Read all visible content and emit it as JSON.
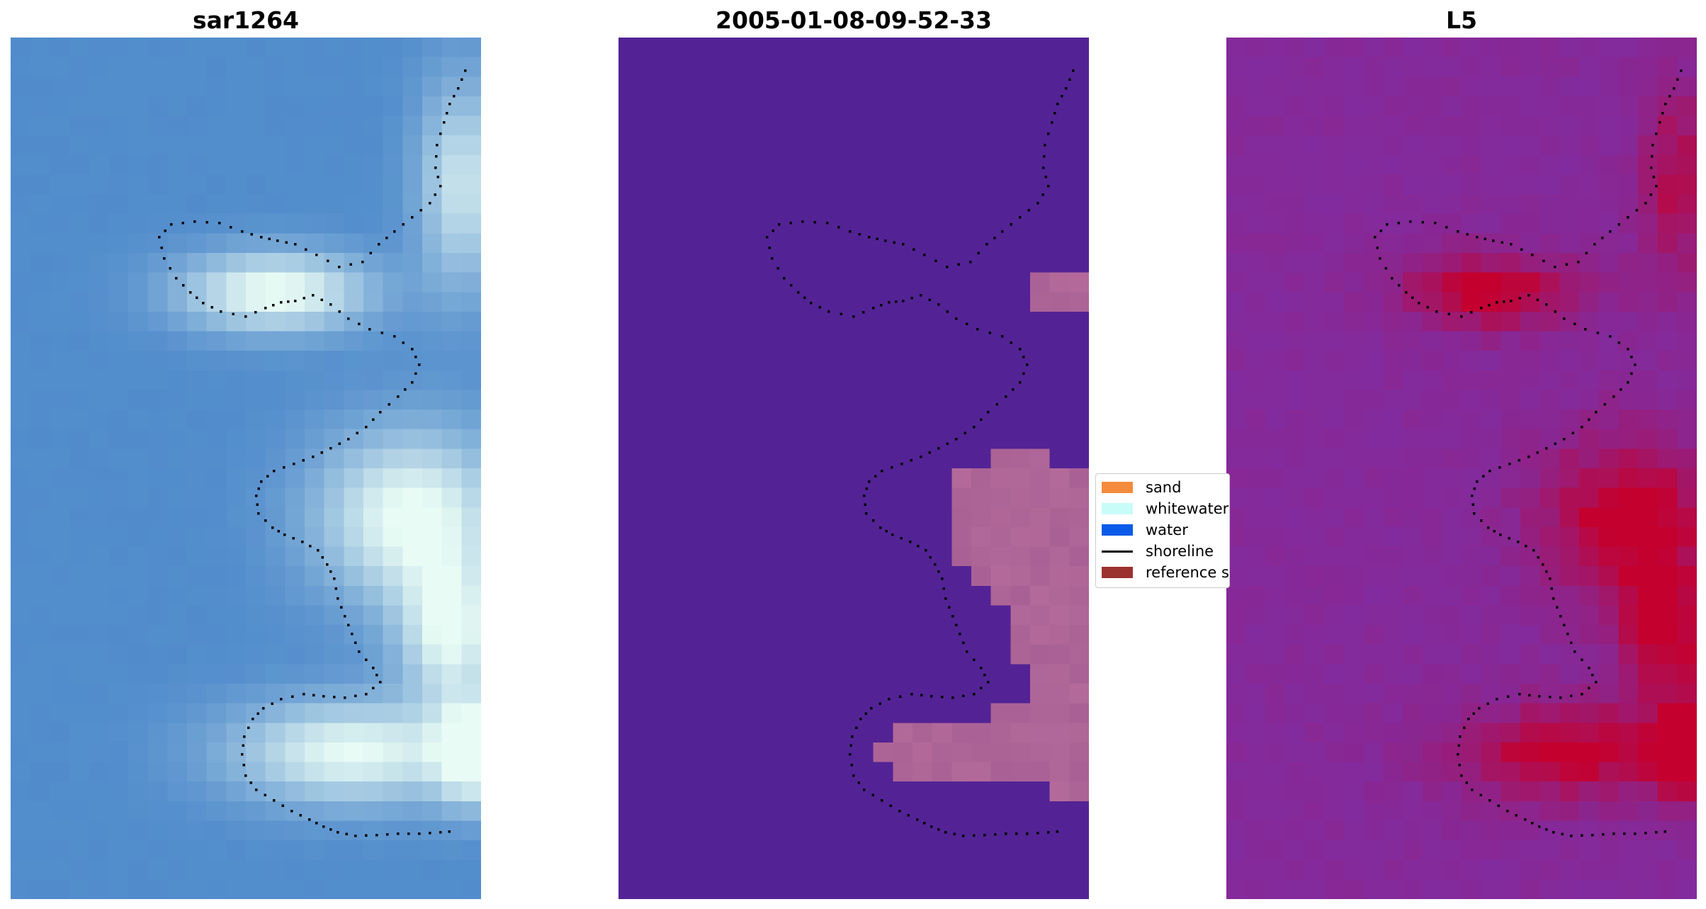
{
  "panels": [
    {
      "title": "sar1264"
    },
    {
      "title": "2005-01-08-09-52-33"
    },
    {
      "title": "L5"
    }
  ],
  "legend": {
    "items": [
      {
        "label": "sand",
        "color": "#f58b3c",
        "kind": "patch"
      },
      {
        "label": "whitewater",
        "color": "#c8fcf8",
        "kind": "patch"
      },
      {
        "label": "water",
        "color": "#0b5be8",
        "kind": "patch"
      },
      {
        "label": "shoreline",
        "color": "#000000",
        "kind": "line"
      },
      {
        "label": "reference s",
        "color": "#9b3230",
        "kind": "patch"
      }
    ]
  },
  "colors": {
    "classified_background": "#532395",
    "classified_sand_overlay": "#b36a9a",
    "ndwi_low": "#540d9f",
    "ndwi_high": "#c4002e",
    "rgb_water": "#4f86cc",
    "rgb_whitewater": "#e8fbf4",
    "shoreline": "#000000"
  }
}
